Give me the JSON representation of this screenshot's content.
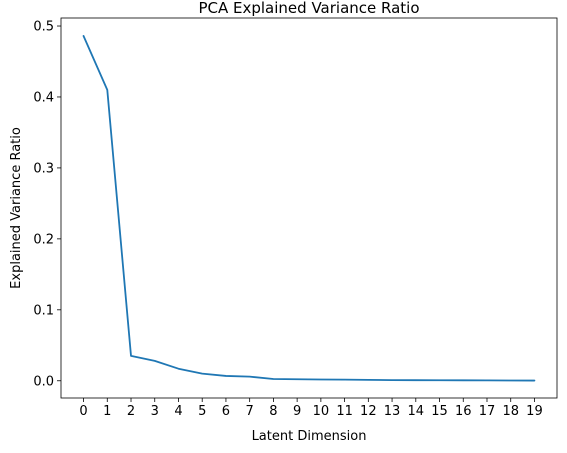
{
  "chart_data": {
    "type": "line",
    "title": "PCA Explained Variance Ratio",
    "xlabel": "Latent Dimension",
    "ylabel": "Explained Variance Ratio",
    "x": [
      0,
      1,
      2,
      3,
      4,
      5,
      6,
      7,
      8,
      9,
      10,
      11,
      12,
      13,
      14,
      15,
      16,
      17,
      18,
      19
    ],
    "x_tick_labels": [
      "0",
      "1",
      "2",
      "3",
      "4",
      "5",
      "6",
      "7",
      "8",
      "9",
      "10",
      "11",
      "12",
      "13",
      "14",
      "15",
      "16",
      "17",
      "18",
      "19"
    ],
    "y_tick_values": [
      0.0,
      0.1,
      0.2,
      0.3,
      0.4,
      0.5
    ],
    "y_tick_labels": [
      "0.0",
      "0.1",
      "0.2",
      "0.3",
      "0.4",
      "0.5"
    ],
    "xlim": [
      -0.95,
      19.95
    ],
    "ylim": [
      -0.0243,
      0.5113
    ],
    "grid": false,
    "series": [
      {
        "color": "#1f77b4",
        "values": [
          0.486,
          0.41,
          0.035,
          0.028,
          0.017,
          0.01,
          0.0068,
          0.0058,
          0.0025,
          0.0021,
          0.0018,
          0.0016,
          0.0013,
          0.0009,
          0.0008,
          0.0007,
          0.0006,
          0.0005,
          0.0004,
          0.0003
        ]
      }
    ]
  }
}
